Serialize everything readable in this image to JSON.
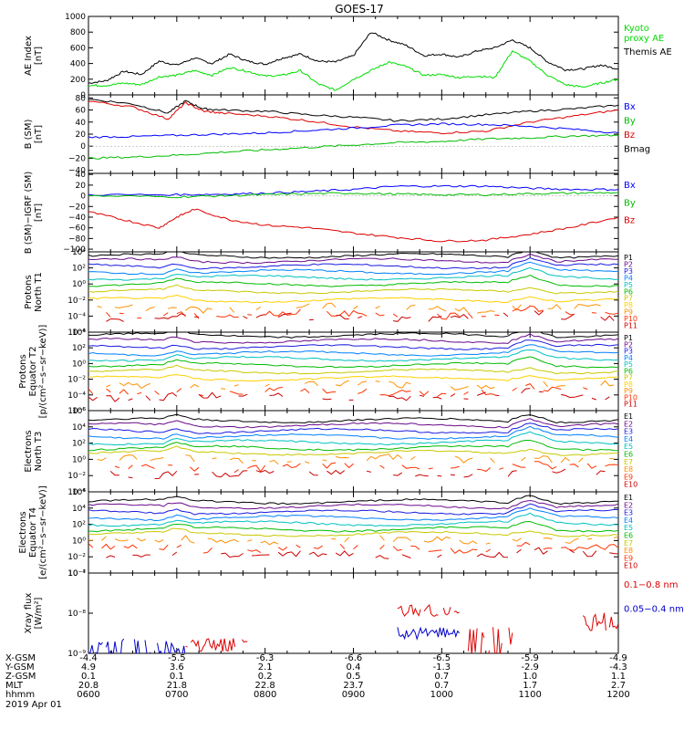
{
  "chart_data": {
    "title": "GOES-17",
    "type": "line",
    "x_range_hours": [
      6,
      12
    ],
    "panels": [
      {
        "id": "ae",
        "ylabel": "AE Index\n[nT]",
        "scale": "linear",
        "ylim": [
          0,
          1000
        ],
        "yticks": [
          "0",
          "200",
          "400",
          "600",
          "800",
          "1000"
        ],
        "legend": [
          {
            "text": "Kyoto\nproxy AE",
            "color": "#00dd00"
          },
          {
            "text": "Themis AE",
            "color": "#000000"
          }
        ],
        "series": [
          {
            "color": "#000000",
            "x": [
              6.0,
              6.2,
              6.4,
              6.6,
              6.8,
              7.0,
              7.2,
              7.4,
              7.6,
              7.8,
              8.0,
              8.2,
              8.4,
              8.6,
              8.8,
              9.0,
              9.2,
              9.4,
              9.6,
              9.8,
              10.0,
              10.2,
              10.4,
              10.6,
              10.8,
              11.0,
              11.2,
              11.4,
              11.6,
              11.8,
              12.0
            ],
            "y": [
              150,
              180,
              300,
              260,
              430,
              380,
              470,
              400,
              520,
              430,
              390,
              470,
              520,
              430,
              420,
              500,
              800,
              700,
              630,
              500,
              520,
              480,
              560,
              600,
              700,
              600,
              420,
              320,
              330,
              380,
              330
            ]
          },
          {
            "color": "#00dd00",
            "x": [
              6.0,
              6.2,
              6.4,
              6.6,
              6.8,
              7.0,
              7.2,
              7.4,
              7.6,
              7.8,
              8.0,
              8.2,
              8.4,
              8.6,
              8.8,
              9.0,
              9.2,
              9.4,
              9.6,
              9.8,
              10.0,
              10.2,
              10.4,
              10.6,
              10.8,
              11.0,
              11.2,
              11.4,
              11.6,
              11.8,
              12.0
            ],
            "y": [
              120,
              120,
              150,
              130,
              230,
              250,
              310,
              250,
              350,
              300,
              240,
              250,
              310,
              140,
              60,
              200,
              310,
              420,
              360,
              250,
              260,
              220,
              240,
              220,
              560,
              430,
              250,
              130,
              100,
              150,
              200
            ]
          }
        ]
      },
      {
        "id": "bsm",
        "ylabel": "B (SM)\n[nT]",
        "scale": "linear",
        "ylim": [
          -45,
          85
        ],
        "yticks": [
          "−40",
          "−20",
          "0",
          "20",
          "40",
          "60",
          "80"
        ],
        "legend": [
          {
            "text": "Bx",
            "color": "#0000ff"
          },
          {
            "text": "By",
            "color": "#00bb00"
          },
          {
            "text": "Bz",
            "color": "#dd0000"
          },
          {
            "text": "Bmag",
            "color": "#000000"
          }
        ],
        "series": [
          {
            "color": "#000000",
            "x": [
              6.0,
              6.5,
              6.9,
              7.1,
              7.3,
              7.5,
              8.0,
              8.5,
              9.0,
              9.5,
              10.0,
              10.5,
              11.0,
              11.5,
              12.0
            ],
            "y": [
              78,
              70,
              55,
              75,
              62,
              60,
              58,
              52,
              48,
              42,
              45,
              52,
              58,
              62,
              68
            ]
          },
          {
            "color": "#dd0000",
            "x": [
              6.0,
              6.5,
              6.9,
              7.1,
              7.3,
              7.5,
              8.0,
              8.5,
              9.0,
              9.5,
              10.0,
              10.5,
              11.0,
              11.5,
              12.0
            ],
            "y": [
              75,
              65,
              45,
              72,
              58,
              55,
              50,
              42,
              32,
              25,
              22,
              25,
              40,
              50,
              60
            ]
          },
          {
            "color": "#0000ff",
            "x": [
              6.0,
              6.5,
              7.0,
              7.5,
              8.0,
              8.5,
              9.0,
              9.5,
              10.0,
              10.5,
              11.0,
              11.5,
              12.0
            ],
            "y": [
              15,
              16,
              18,
              20,
              22,
              26,
              30,
              35,
              37,
              36,
              33,
              28,
              22
            ]
          },
          {
            "color": "#00bb00",
            "x": [
              6.0,
              6.5,
              7.0,
              7.5,
              8.0,
              8.5,
              9.0,
              9.5,
              10.0,
              10.5,
              11.0,
              11.5,
              12.0
            ],
            "y": [
              -20,
              -18,
              -15,
              -10,
              -6,
              -2,
              2,
              6,
              8,
              12,
              14,
              17,
              18
            ]
          }
        ]
      },
      {
        "id": "bigrf",
        "ylabel": "B (SM)−IGRF (SM)\n[nT]",
        "scale": "linear",
        "ylim": [
          -105,
          42
        ],
        "yticks": [
          "−100",
          "−80",
          "−60",
          "−40",
          "−20",
          "0",
          "20",
          "40"
        ],
        "legend": [
          {
            "text": "Bx",
            "color": "#0000ff"
          },
          {
            "text": "By",
            "color": "#00bb00"
          },
          {
            "text": "Bz",
            "color": "#dd0000"
          }
        ],
        "series": [
          {
            "color": "#0000ff",
            "x": [
              6.0,
              7.0,
              7.5,
              8.0,
              8.5,
              9.0,
              9.5,
              10.0,
              10.5,
              11.0,
              11.5,
              12.0
            ],
            "y": [
              2,
              2,
              3,
              5,
              8,
              12,
              18,
              18,
              18,
              14,
              12,
              12
            ]
          },
          {
            "color": "#00bb00",
            "x": [
              6.0,
              7.0,
              7.5,
              8.0,
              8.5,
              9.0,
              9.5,
              10.0,
              10.5,
              11.0,
              11.5,
              12.0
            ],
            "y": [
              0,
              -2,
              0,
              2,
              4,
              5,
              3,
              2,
              2,
              4,
              5,
              6
            ]
          },
          {
            "color": "#dd0000",
            "x": [
              6.0,
              6.4,
              6.8,
              7.0,
              7.2,
              7.6,
              8.0,
              8.5,
              9.0,
              9.5,
              10.0,
              10.5,
              11.0,
              11.5,
              12.0
            ],
            "y": [
              -30,
              -45,
              -60,
              -40,
              -25,
              -45,
              -55,
              -60,
              -70,
              -78,
              -85,
              -83,
              -72,
              -58,
              -40
            ]
          }
        ]
      },
      {
        "id": "pn",
        "ylabel": "Protons\nNorth T1",
        "scale": "log",
        "ylim": [
          -6,
          4
        ],
        "yticks": [
          "10⁻⁶",
          "10⁻⁴",
          "10⁻²",
          "10⁰",
          "10²",
          "10⁴"
        ],
        "legend": [
          {
            "text": "P1",
            "color": "#000000"
          },
          {
            "text": "P2",
            "color": "#6a0a8a"
          },
          {
            "text": "P3",
            "color": "#1a1ae0"
          },
          {
            "text": "P4",
            "color": "#0080ff"
          },
          {
            "text": "P5",
            "color": "#00c0c0"
          },
          {
            "text": "P6",
            "color": "#00bb00"
          },
          {
            "text": "P7",
            "color": "#c8c800"
          },
          {
            "text": "P8",
            "color": "#ffd000"
          },
          {
            "text": "P9",
            "color": "#ff9000"
          },
          {
            "text": "P10",
            "color": "#ff3000"
          },
          {
            "text": "P11",
            "color": "#cc0000"
          }
        ],
        "channel_levels": [
          3.5,
          2.9,
          2.2,
          1.5,
          0.8,
          0.0,
          -0.9,
          -2.0,
          -3.0,
          -3.8,
          -4.2
        ]
      },
      {
        "id": "pe",
        "ylabel": "Protons\nEquator T2\n[p/(cm²−s−sr−keV)]",
        "scale": "log",
        "ylim": [
          -6,
          4
        ],
        "yticks": [
          "10⁻⁶",
          "10⁻⁴",
          "10⁻²",
          "10⁰",
          "10²",
          "10⁴"
        ],
        "legend": [
          {
            "text": "P1",
            "color": "#000000"
          },
          {
            "text": "P2",
            "color": "#6a0a8a"
          },
          {
            "text": "P3",
            "color": "#1a1ae0"
          },
          {
            "text": "P4",
            "color": "#0080ff"
          },
          {
            "text": "P5",
            "color": "#00c0c0"
          },
          {
            "text": "P6",
            "color": "#00bb00"
          },
          {
            "text": "P7",
            "color": "#c8c800"
          },
          {
            "text": "P8",
            "color": "#ffd000"
          },
          {
            "text": "P9",
            "color": "#ff9000"
          },
          {
            "text": "P10",
            "color": "#ff3000"
          },
          {
            "text": "P11",
            "color": "#cc0000"
          }
        ],
        "channel_levels": [
          3.6,
          2.9,
          2.1,
          1.3,
          0.6,
          -0.2,
          -1.0,
          -1.9,
          -2.8,
          -3.6,
          -4.2
        ]
      },
      {
        "id": "en",
        "ylabel": "Electrons\nNorth T3",
        "scale": "log",
        "ylim": [
          -4,
          6
        ],
        "yticks": [
          "10⁻⁴",
          "10⁻²",
          "10⁰",
          "10²",
          "10⁴",
          "10⁶"
        ],
        "legend": [
          {
            "text": "E1",
            "color": "#000000"
          },
          {
            "text": "E2",
            "color": "#6a0a8a"
          },
          {
            "text": "E3",
            "color": "#1a1ae0"
          },
          {
            "text": "E4",
            "color": "#0080ff"
          },
          {
            "text": "E5",
            "color": "#00c0c0"
          },
          {
            "text": "E6",
            "color": "#00bb00"
          },
          {
            "text": "E7",
            "color": "#c8c800"
          },
          {
            "text": "E8",
            "color": "#ff9000"
          },
          {
            "text": "E9",
            "color": "#ff3000"
          },
          {
            "text": "E10",
            "color": "#cc0000"
          }
        ],
        "channel_levels": [
          4.8,
          4.2,
          3.5,
          2.8,
          2.1,
          1.4,
          0.8,
          0.0,
          -1.0,
          -1.8
        ]
      },
      {
        "id": "ee",
        "ylabel": "Electrons\nEquator T4\n[e/(cm²−s−sr−keV)]",
        "scale": "log",
        "ylim": [
          -4,
          6
        ],
        "yticks": [
          "10⁻⁴",
          "10⁻²",
          "10⁰",
          "10²",
          "10⁴",
          "10⁶"
        ],
        "legend": [
          {
            "text": "E1",
            "color": "#000000"
          },
          {
            "text": "E2",
            "color": "#6a0a8a"
          },
          {
            "text": "E3",
            "color": "#1a1ae0"
          },
          {
            "text": "E4",
            "color": "#0080ff"
          },
          {
            "text": "E5",
            "color": "#00c0c0"
          },
          {
            "text": "E6",
            "color": "#00bb00"
          },
          {
            "text": "E7",
            "color": "#c8c800"
          },
          {
            "text": "E8",
            "color": "#ff9000"
          },
          {
            "text": "E9",
            "color": "#ff3000"
          },
          {
            "text": "E10",
            "color": "#cc0000"
          }
        ],
        "channel_levels": [
          4.8,
          4.2,
          3.5,
          2.8,
          2.1,
          1.4,
          0.8,
          0.0,
          -1.0,
          -1.8
        ]
      },
      {
        "id": "xray",
        "ylabel": "Xray flux\n[W/m²]",
        "scale": "log",
        "ylim": [
          -9,
          -7
        ],
        "yticks": [
          "10⁻⁹",
          "10⁻⁸",
          "10⁻⁷"
        ],
        "legend": [
          {
            "text": "0.1−0.8 nm",
            "color": "#dd0000"
          },
          {
            "text": "0.05−0.4 nm",
            "color": "#0000cc"
          }
        ]
      }
    ],
    "xaxis_rows": [
      {
        "label": "X-GSM",
        "values": [
          "-4.4",
          "-5.5",
          "-6.3",
          "-6.6",
          "-6.5",
          "-5.9",
          "-4.9"
        ]
      },
      {
        "label": "Y-GSM",
        "values": [
          "4.9",
          "3.6",
          "2.1",
          "0.4",
          "-1.3",
          "-2.9",
          "-4.3"
        ]
      },
      {
        "label": "Z-GSM",
        "values": [
          "0.1",
          "0.1",
          "0.2",
          "0.5",
          "0.7",
          "1.0",
          "1.1"
        ]
      },
      {
        "label": "MLT",
        "values": [
          "20.8",
          "21.8",
          "22.8",
          "23.7",
          "0.7",
          "1.7",
          "2.7"
        ]
      },
      {
        "label": "hhmm",
        "values": [
          "0600",
          "0700",
          "0800",
          "0900",
          "1000",
          "1100",
          "1200"
        ]
      }
    ],
    "date": "2019 Apr 01"
  }
}
